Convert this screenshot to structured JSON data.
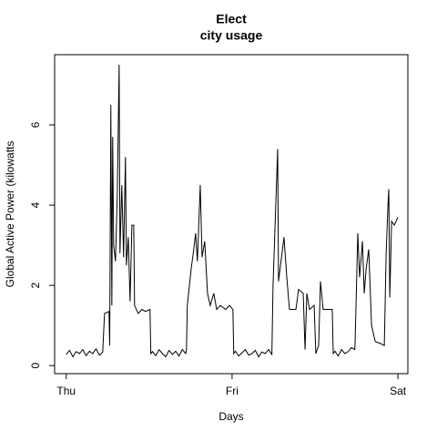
{
  "chart_data": {
    "type": "line",
    "title": [
      "Elect",
      "city usage"
    ],
    "x_label": "Days",
    "y_label": "Global Active Power (kilowatts",
    "xlim": [
      -0.07,
      2.06
    ],
    "ylim": [
      -0.2,
      7.75
    ],
    "xticks": [
      {
        "value": 0,
        "label": "Thu"
      },
      {
        "value": 1,
        "label": "Fri"
      },
      {
        "value": 2,
        "label": "Sat"
      }
    ],
    "yticks": [
      0,
      2,
      4,
      6
    ],
    "series": [
      {
        "color": "#000000",
        "x": [
          0,
          0.02,
          0.04,
          0.06,
          0.08,
          0.1,
          0.12,
          0.14,
          0.16,
          0.18,
          0.2,
          0.22,
          0.231,
          0.258,
          0.262,
          0.269,
          0.275,
          0.28,
          0.286,
          0.297,
          0.308,
          0.319,
          0.324,
          0.335,
          0.346,
          0.357,
          0.363,
          0.374,
          0.385,
          0.396,
          0.407,
          0.412,
          0.434,
          0.456,
          0.478,
          0.505,
          0.51,
          0.52,
          0.54,
          0.56,
          0.58,
          0.6,
          0.62,
          0.64,
          0.66,
          0.68,
          0.7,
          0.72,
          0.725,
          0.73,
          0.753,
          0.769,
          0.78,
          0.791,
          0.808,
          0.819,
          0.835,
          0.852,
          0.868,
          0.89,
          0.907,
          0.929,
          0.962,
          0.984,
          1.005,
          1.01,
          1.02,
          1.04,
          1.06,
          1.08,
          1.1,
          1.12,
          1.14,
          1.16,
          1.18,
          1.2,
          1.22,
          1.24,
          1.247,
          1.275,
          1.28,
          1.313,
          1.33,
          1.346,
          1.385,
          1.401,
          1.429,
          1.44,
          1.451,
          1.467,
          1.495,
          1.505,
          1.522,
          1.533,
          1.549,
          1.577,
          1.604,
          1.61,
          1.62,
          1.64,
          1.66,
          1.68,
          1.7,
          1.72,
          1.74,
          1.742,
          1.758,
          1.769,
          1.786,
          1.797,
          1.808,
          1.824,
          1.841,
          1.863,
          1.896,
          1.918,
          1.929,
          1.94,
          1.945,
          1.951,
          1.962,
          1.978,
          2.0
        ],
        "values": [
          0.28,
          0.38,
          0.22,
          0.35,
          0.3,
          0.4,
          0.25,
          0.36,
          0.3,
          0.42,
          0.26,
          0.34,
          1.3,
          1.35,
          0.5,
          6.5,
          1.5,
          5.7,
          3.0,
          2.6,
          4.3,
          7.5,
          2.8,
          4.5,
          2.7,
          5.2,
          2.5,
          3.2,
          1.6,
          3.5,
          3.5,
          1.5,
          1.3,
          1.4,
          1.35,
          1.4,
          0.3,
          0.35,
          0.25,
          0.4,
          0.3,
          0.22,
          0.38,
          0.28,
          0.36,
          0.24,
          0.4,
          0.3,
          0.4,
          1.5,
          2.4,
          2.9,
          3.3,
          2.6,
          4.5,
          2.7,
          3.1,
          1.8,
          1.5,
          1.8,
          1.4,
          1.5,
          1.4,
          1.5,
          1.4,
          0.3,
          0.36,
          0.24,
          0.32,
          0.4,
          0.26,
          0.3,
          0.38,
          0.22,
          0.34,
          0.3,
          0.4,
          0.28,
          2.0,
          5.4,
          2.1,
          3.2,
          2.2,
          1.4,
          1.4,
          1.9,
          1.8,
          0.4,
          1.8,
          1.4,
          1.5,
          0.3,
          0.5,
          2.1,
          1.4,
          1.4,
          1.4,
          0.3,
          0.36,
          0.24,
          0.4,
          0.3,
          0.35,
          0.45,
          0.4,
          0.6,
          3.3,
          2.2,
          3.1,
          1.8,
          2.4,
          2.9,
          1.0,
          0.6,
          0.55,
          0.5,
          2.8,
          4.0,
          4.4,
          1.7,
          3.6,
          3.5,
          3.7
        ]
      }
    ]
  }
}
